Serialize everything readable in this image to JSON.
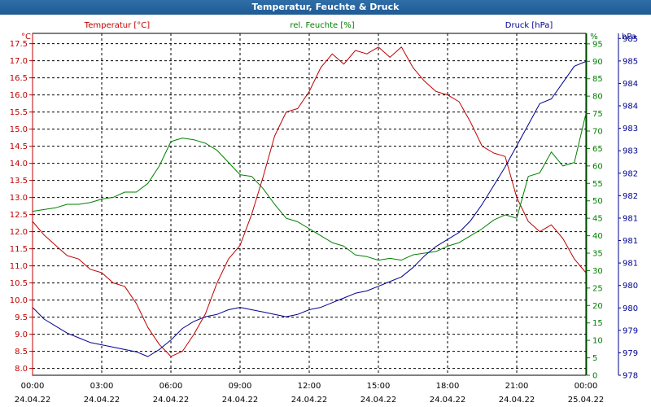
{
  "window": {
    "title": "Temperatur, Feuchte & Druck"
  },
  "colors": {
    "temperature": "#c00000",
    "humidity": "#008000",
    "pressure": "#000090",
    "grid": "#000000",
    "text": "#000000"
  },
  "chart_data": {
    "type": "line",
    "title": "Temperatur, Feuchte & Druck",
    "grid": true,
    "x_ticks": [
      {
        "time": "00:00",
        "date": "24.04.22"
      },
      {
        "time": "03:00",
        "date": "24.04.22"
      },
      {
        "time": "06:00",
        "date": "24.04.22"
      },
      {
        "time": "09:00",
        "date": "24.04.22"
      },
      {
        "time": "12:00",
        "date": "24.04.22"
      },
      {
        "time": "15:00",
        "date": "24.04.22"
      },
      {
        "time": "18:00",
        "date": "24.04.22"
      },
      {
        "time": "21:00",
        "date": "24.04.22"
      },
      {
        "time": "00:00",
        "date": "25.04.22"
      }
    ],
    "x_range_hours": [
      0,
      24
    ],
    "axes": {
      "temperature": {
        "header": "Temperatur [°C]",
        "unit": "°C",
        "range": [
          7.8,
          17.8
        ],
        "ticks": [
          "8.0",
          "8.5",
          "9.0",
          "9.5",
          "10.0",
          "10.5",
          "11.0",
          "11.5",
          "12.0",
          "12.5",
          "13.0",
          "13.5",
          "14.0",
          "14.5",
          "15.0",
          "15.5",
          "16.0",
          "16.5",
          "17.0",
          "17.5"
        ]
      },
      "humidity": {
        "header": "rel. Feuchte [%]",
        "unit": "%",
        "range": [
          0,
          98
        ],
        "ticks": [
          "0",
          "5",
          "10",
          "15",
          "20",
          "25",
          "30",
          "35",
          "40",
          "45",
          "50",
          "55",
          "60",
          "65",
          "70",
          "75",
          "80",
          "85",
          "90",
          "95"
        ]
      },
      "pressure": {
        "header": "Druck [hPa]",
        "unit": "hPa",
        "range": [
          978.3,
          985.6
        ],
        "ticks": [
          "978",
          "979",
          "979",
          "980",
          "980",
          "981",
          "981",
          "981",
          "982",
          "982",
          "983",
          "983",
          "984",
          "984",
          "985",
          "985"
        ]
      }
    },
    "series": [
      {
        "name": "Temperatur [°C]",
        "axis": "temperature",
        "x": [
          0,
          0.5,
          1,
          1.5,
          2,
          2.5,
          3,
          3.5,
          4,
          4.5,
          5,
          5.5,
          6,
          6.5,
          7,
          7.5,
          8,
          8.5,
          9,
          9.5,
          10,
          10.5,
          11,
          11.5,
          12,
          12.5,
          13,
          13.5,
          14,
          14.5,
          15,
          15.5,
          16,
          16.5,
          17,
          17.5,
          18,
          18.5,
          19,
          19.5,
          20,
          20.5,
          21,
          21.5,
          22,
          22.5,
          23,
          23.5,
          24
        ],
        "values": [
          12.3,
          11.9,
          11.6,
          11.3,
          11.2,
          10.9,
          10.8,
          10.5,
          10.4,
          9.9,
          9.2,
          8.7,
          8.35,
          8.5,
          9.0,
          9.6,
          10.5,
          11.2,
          11.6,
          12.5,
          13.6,
          14.8,
          15.5,
          15.6,
          16.1,
          16.8,
          17.2,
          16.9,
          17.3,
          17.2,
          17.4,
          17.1,
          17.4,
          16.8,
          16.4,
          16.1,
          16.0,
          15.8,
          15.2,
          14.5,
          14.3,
          14.2,
          13.0,
          12.3,
          12.0,
          12.2,
          11.8,
          11.2,
          10.8
        ]
      },
      {
        "name": "rel. Feuchte [%]",
        "axis": "humidity",
        "x": [
          0,
          0.5,
          1,
          1.5,
          2,
          2.5,
          3,
          3.5,
          4,
          4.5,
          5,
          5.5,
          6,
          6.5,
          7,
          7.5,
          8,
          8.5,
          9,
          9.5,
          10,
          10.5,
          11,
          11.5,
          12,
          12.5,
          13,
          13.5,
          14,
          14.5,
          15,
          15.5,
          16,
          16.5,
          17,
          17.5,
          18,
          18.5,
          19,
          19.5,
          20,
          20.5,
          21,
          21.5,
          22,
          22.5,
          23,
          23.5,
          24
        ],
        "values": [
          47,
          47.5,
          48,
          49,
          49,
          49.5,
          50.5,
          51,
          52.5,
          52.5,
          55,
          60,
          67,
          68,
          67.5,
          66.5,
          64.5,
          61,
          57.5,
          57,
          53.5,
          49,
          45,
          44,
          42,
          40,
          38,
          37,
          34.5,
          34,
          33,
          33.5,
          33,
          34.5,
          35,
          35.5,
          37,
          38,
          40,
          42,
          44.5,
          46,
          45,
          57,
          58,
          64,
          60,
          61,
          75
        ]
      },
      {
        "name": "Druck [hPa]",
        "axis": "pressure",
        "x": [
          0,
          0.5,
          1,
          1.5,
          2,
          2.5,
          3,
          3.5,
          4,
          4.5,
          5,
          5.5,
          6,
          6.5,
          7,
          7.5,
          8,
          8.5,
          9,
          9.5,
          10,
          10.5,
          11,
          11.5,
          12,
          12.5,
          13,
          13.5,
          14,
          14.5,
          15,
          15.5,
          16,
          16.5,
          17,
          17.5,
          18,
          18.5,
          19,
          19.5,
          20,
          20.5,
          21,
          21.5,
          22,
          22.5,
          23,
          23.5,
          24
        ],
        "values": [
          979.75,
          979.5,
          979.35,
          979.2,
          979.1,
          979.0,
          978.95,
          978.9,
          978.85,
          978.8,
          978.7,
          978.85,
          979.05,
          979.3,
          979.45,
          979.55,
          979.6,
          979.7,
          979.75,
          979.7,
          979.65,
          979.6,
          979.55,
          979.6,
          979.7,
          979.75,
          979.85,
          979.95,
          980.05,
          980.1,
          980.2,
          980.3,
          980.4,
          980.6,
          980.85,
          981.05,
          981.2,
          981.35,
          981.6,
          981.95,
          982.35,
          982.75,
          983.2,
          983.65,
          984.1,
          984.2,
          984.55,
          984.9,
          985.0
        ]
      }
    ]
  }
}
